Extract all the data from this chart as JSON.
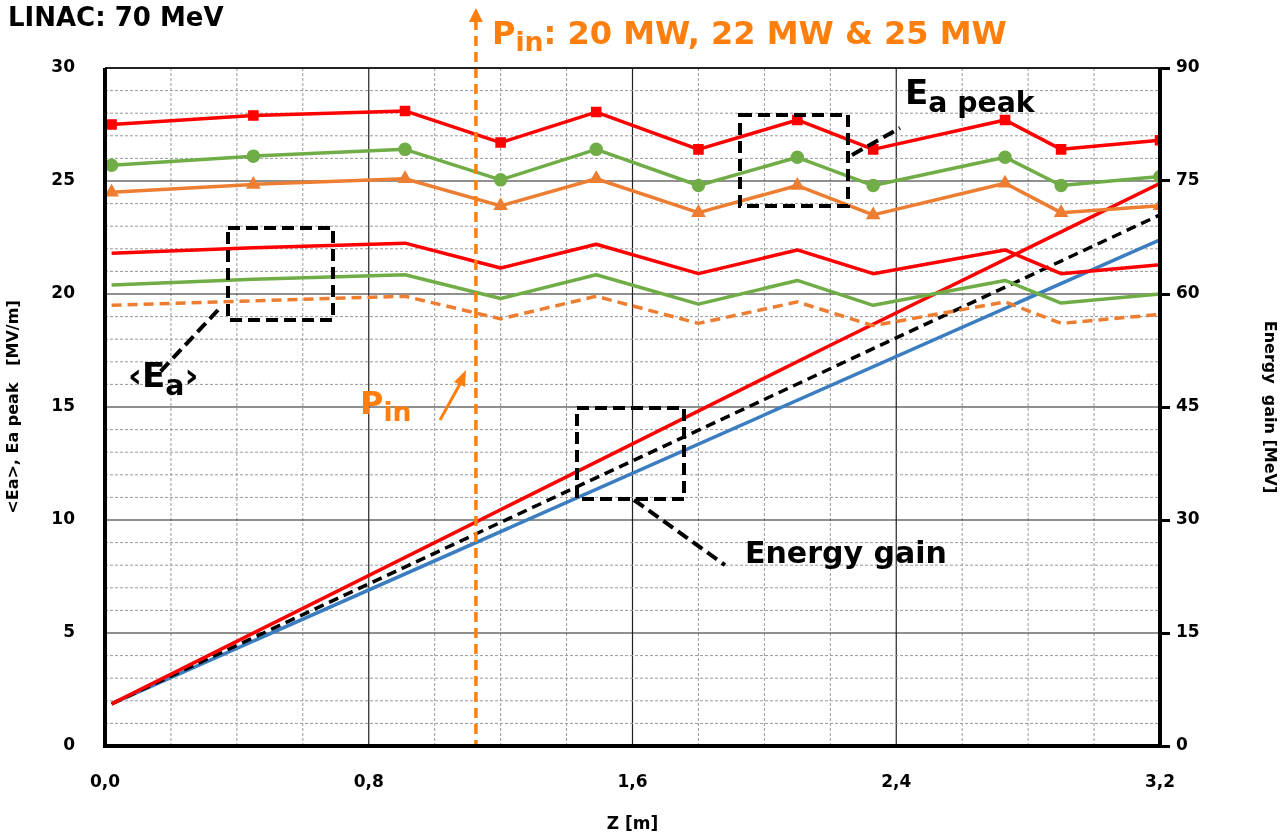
{
  "chart_data": {
    "type": "line",
    "title": "LINAC: 70 MeV",
    "xlabel": "Z [m]",
    "ylabel": "<Ea>, Ea peak   [MV/m]",
    "y2label": "Energy  gain [MeV]",
    "xlim": [
      0,
      3.2
    ],
    "xticks": [
      {
        "value": 0,
        "label": "0,0"
      },
      {
        "value": 0.2,
        "label": null
      },
      {
        "value": 0.4,
        "label": null
      },
      {
        "value": 0.6,
        "label": null
      },
      {
        "value": 0.8,
        "label": "0,8"
      },
      {
        "value": 1.0,
        "label": null
      },
      {
        "value": 1.2,
        "label": null
      },
      {
        "value": 1.4,
        "label": null
      },
      {
        "value": 1.6,
        "label": "1,6"
      },
      {
        "value": 1.8,
        "label": null
      },
      {
        "value": 2.0,
        "label": null
      },
      {
        "value": 2.2,
        "label": null
      },
      {
        "value": 2.4,
        "label": "2,4"
      },
      {
        "value": 2.6,
        "label": null
      },
      {
        "value": 2.8,
        "label": null
      },
      {
        "value": 3.0,
        "label": null
      },
      {
        "value": 3.2,
        "label": "3,2"
      }
    ],
    "ylim": [
      0,
      30
    ],
    "yticks": [
      0,
      {
        "value": 1,
        "label": null
      },
      {
        "value": 2,
        "label": null
      },
      {
        "value": 3,
        "label": null
      },
      {
        "value": 4,
        "label": null
      },
      5,
      {
        "value": 6,
        "label": null
      },
      {
        "value": 7,
        "label": null
      },
      {
        "value": 8,
        "label": null
      },
      {
        "value": 9,
        "label": null
      },
      10,
      {
        "value": 11,
        "label": null
      },
      {
        "value": 12,
        "label": null
      },
      {
        "value": 13,
        "label": null
      },
      {
        "value": 14,
        "label": null
      },
      15,
      {
        "value": 16,
        "label": null
      },
      {
        "value": 17,
        "label": null
      },
      {
        "value": 18,
        "label": null
      },
      {
        "value": 19,
        "label": null
      },
      20,
      {
        "value": 21,
        "label": null
      },
      {
        "value": 22,
        "label": null
      },
      {
        "value": 23,
        "label": null
      },
      {
        "value": 24,
        "label": null
      },
      25,
      {
        "value": 26,
        "label": null
      },
      {
        "value": 27,
        "label": null
      },
      {
        "value": 28,
        "label": null
      },
      {
        "value": 29,
        "label": null
      },
      30
    ],
    "y2lim": [
      0,
      90
    ],
    "y2ticks": [
      0,
      15,
      30,
      45,
      60,
      75,
      90
    ],
    "grid": true,
    "legend": false,
    "series": [
      {
        "color": "#ff0000",
        "marker": "square",
        "x": [
          0.02,
          0.45,
          0.91,
          1.2,
          1.49,
          1.8,
          2.1,
          2.33,
          2.73,
          2.9,
          3.2
        ],
        "values": [
          27.5,
          27.9,
          28.1,
          26.7,
          28.05,
          26.4,
          27.7,
          26.4,
          27.7,
          26.4,
          26.8
        ]
      },
      {
        "color": "#70ad47",
        "marker": "circle",
        "x": [
          0.02,
          0.45,
          0.91,
          1.2,
          1.49,
          1.8,
          2.1,
          2.33,
          2.73,
          2.9,
          3.2
        ],
        "values": [
          25.7,
          26.1,
          26.4,
          25.05,
          26.4,
          24.8,
          26.05,
          24.8,
          26.05,
          24.8,
          25.2
        ]
      },
      {
        "color": "#ed7d31",
        "marker": "triangle",
        "x": [
          0.02,
          0.45,
          0.91,
          1.2,
          1.49,
          1.8,
          2.1,
          2.33,
          2.73,
          2.9,
          3.2
        ],
        "values": [
          24.5,
          24.85,
          25.1,
          23.9,
          25.1,
          23.6,
          24.8,
          23.5,
          24.9,
          23.6,
          23.9
        ]
      },
      {
        "color": "#ff0000",
        "line_style": "solid",
        "x": [
          0.02,
          0.45,
          0.91,
          1.2,
          1.49,
          1.8,
          2.1,
          2.33,
          2.73,
          2.9,
          3.2
        ],
        "values": [
          21.8,
          22.05,
          22.25,
          21.15,
          22.2,
          20.9,
          21.95,
          20.9,
          21.95,
          20.9,
          21.3
        ]
      },
      {
        "color": "#70ad47",
        "line_style": "solid",
        "x": [
          0.02,
          0.45,
          0.91,
          1.2,
          1.49,
          1.8,
          2.1,
          2.33,
          2.73,
          2.9,
          3.2
        ],
        "values": [
          20.4,
          20.65,
          20.85,
          19.8,
          20.85,
          19.55,
          20.6,
          19.5,
          20.6,
          19.6,
          20.0
        ]
      },
      {
        "color": "#ed7d31",
        "line_style": "dashed",
        "x": [
          0.02,
          0.45,
          0.91,
          1.2,
          1.49,
          1.8,
          2.1,
          2.33,
          2.73,
          2.9,
          3.2
        ],
        "values": [
          19.5,
          19.7,
          19.9,
          18.9,
          19.9,
          18.7,
          19.65,
          18.6,
          19.65,
          18.7,
          19.1
        ]
      },
      {
        "color": "#ff0000",
        "axis": "y2",
        "line_style": "solid",
        "x": [
          0.02,
          2.2,
          3.2
        ],
        "values": [
          5.6,
          53.2,
          74.7
        ]
      },
      {
        "color": "#000000",
        "axis": "y2",
        "line_style": "dashed",
        "x": [
          0.02,
          3.2
        ],
        "values": [
          5.6,
          70.5
        ]
      },
      {
        "color": "#3a7dc0",
        "axis": "y2",
        "line_style": "solid",
        "x": [
          0.02,
          3.2
        ],
        "values": [
          5.6,
          67.2
        ]
      }
    ],
    "ref_lines": [
      {
        "axis": "x",
        "value": 1.125,
        "color": "#ff7f0e",
        "line_style": "dashed"
      }
    ],
    "annotations": [
      "E$_{a peak}$",
      "‹E$_{a}$›",
      "P$_{in}$",
      "Energy gain",
      "P$_{in}$: 20 MW, 22 MW & 25 MW"
    ]
  }
}
